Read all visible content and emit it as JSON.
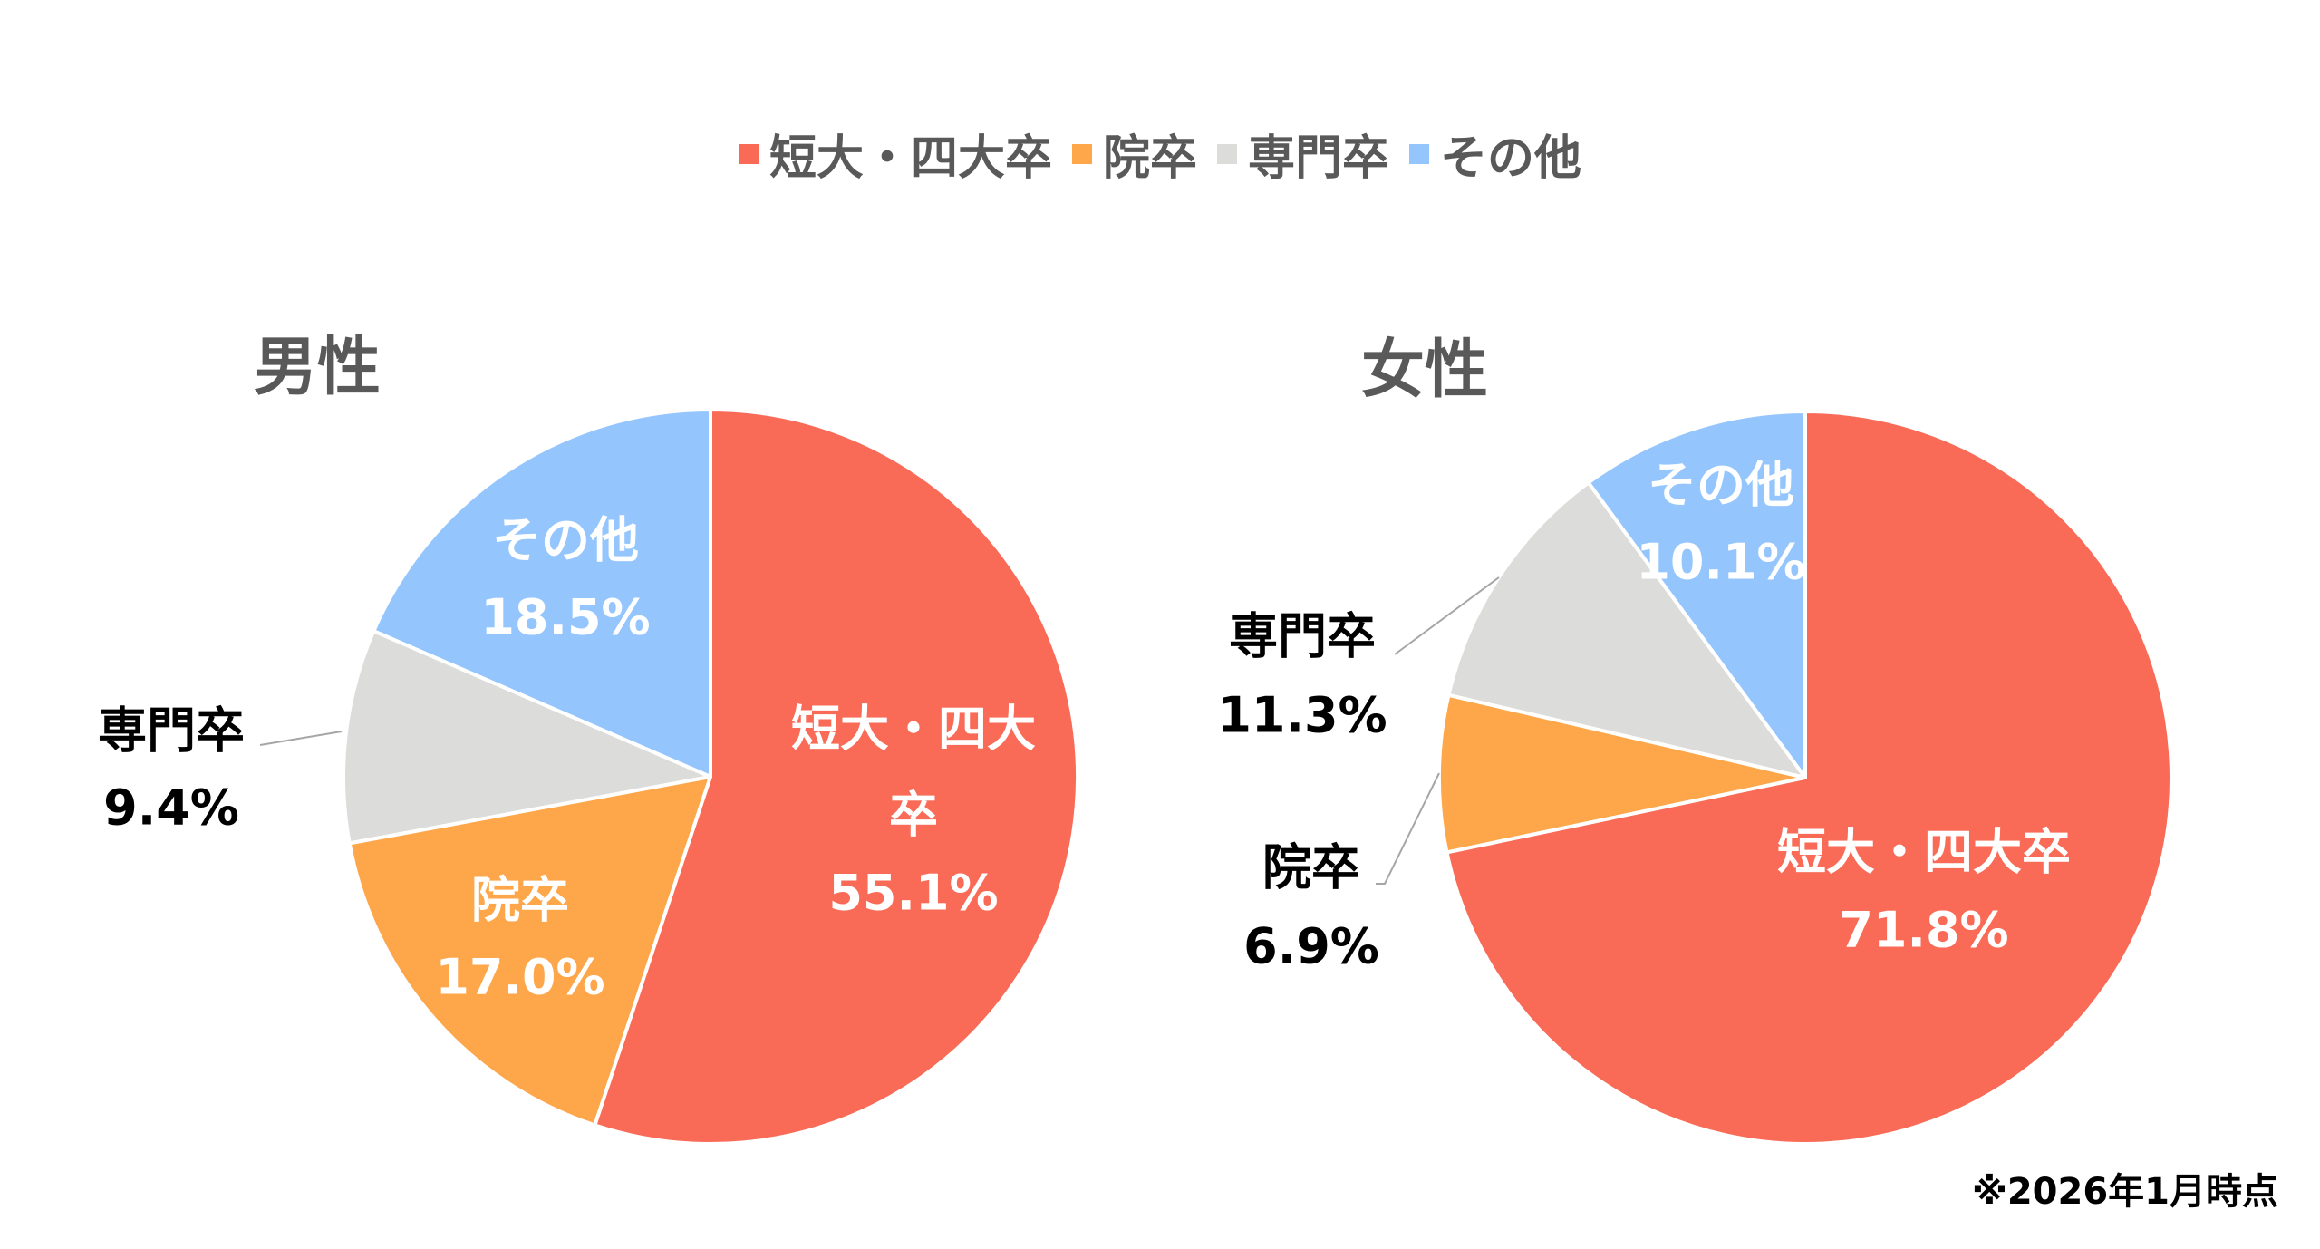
{
  "chart_data": [
    {
      "type": "pie",
      "title": "男性",
      "categories": [
        "短大・四大卒",
        "院卒",
        "専門卒",
        "その他"
      ],
      "values": [
        55.1,
        17.0,
        9.4,
        18.5
      ],
      "labels": [
        "55.1%",
        "17.0%",
        "9.4%",
        "18.5%"
      ]
    },
    {
      "type": "pie",
      "title": "女性",
      "categories": [
        "短大・四大卒",
        "院卒",
        "専門卒",
        "その他"
      ],
      "values": [
        71.8,
        6.9,
        11.3,
        10.1
      ],
      "labels": [
        "71.8%",
        "6.9%",
        "11.3%",
        "10.1%"
      ]
    }
  ],
  "legend": [
    {
      "label": "短大・四大卒",
      "color": "#F96B57"
    },
    {
      "label": "院卒",
      "color": "#FDA64A"
    },
    {
      "label": "専門卒",
      "color": "#DCDCDA"
    },
    {
      "label": "その他",
      "color": "#94C6FD"
    }
  ],
  "male_label_short_line1": "短大・四大",
  "male_label_short_line2": "卒",
  "footnote": "※2026年1月時点"
}
